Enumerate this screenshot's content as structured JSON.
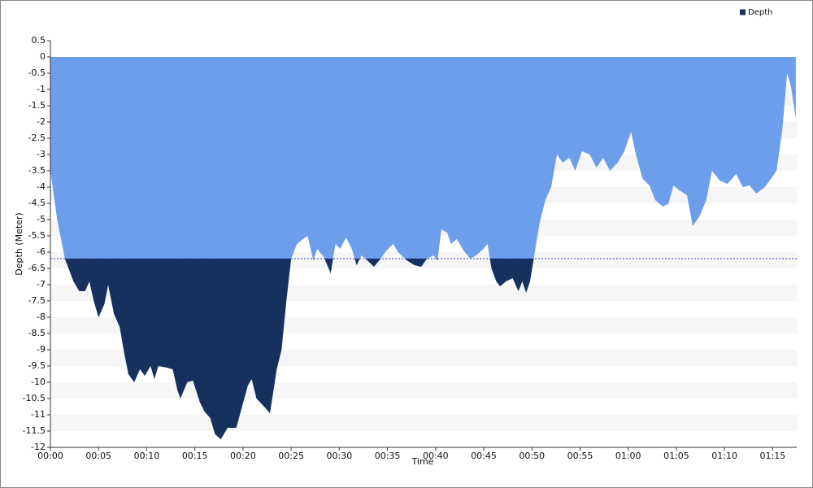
{
  "chart_data": {
    "type": "area",
    "x_label": "Time",
    "y_label": "Depth (Meter)",
    "x": [
      0,
      0.7,
      1.5,
      2.4,
      3.0,
      3.6,
      4.05,
      4.5,
      5,
      5.6,
      6,
      6.6,
      7.2,
      7.6,
      8.1,
      8.7,
      9.3,
      9.8,
      10.4,
      10.8,
      11.2,
      12.1,
      12.7,
      13.2,
      13.5,
      14.2,
      14.8,
      15.5,
      16,
      16.6,
      17.1,
      17.7,
      18.4,
      19.3,
      19.9,
      20.5,
      20.9,
      21.4,
      22.2,
      22.8,
      23.5,
      24,
      24.5,
      25,
      25.6,
      26.2,
      26.7,
      27.3,
      27.7,
      28.4,
      29.1,
      29.6,
      30.1,
      30.7,
      31.3,
      31.8,
      32.3,
      32.9,
      33.6,
      34.3,
      34.9,
      35.6,
      36.1,
      37,
      37.8,
      38.5,
      39.1,
      39.8,
      40.2,
      40.6,
      41.2,
      41.6,
      42.2,
      42.9,
      43.6,
      44.2,
      44.8,
      45.4,
      45.8,
      46.3,
      46.7,
      47.3,
      48,
      48.6,
      49,
      49.4,
      49.8,
      50.3,
      50.8,
      51.4,
      52,
      52.6,
      53.2,
      53.9,
      54.5,
      55.2,
      56,
      56.7,
      57.4,
      58.1,
      58.9,
      59.6,
      60.3,
      60.8,
      61.5,
      62.2,
      62.8,
      63.6,
      64.2,
      64.7,
      65.3,
      66.1,
      66.7,
      67.4,
      68.1,
      68.7,
      69.5,
      70.3,
      71.2,
      71.9,
      72.6,
      73.3,
      74.2,
      74.8,
      75.4,
      76,
      76.5,
      76.9,
      77.4
    ],
    "series": [
      {
        "name": "Depth",
        "color": "#17315f",
        "fill_color": "#6d9eeb",
        "values": [
          -3.5,
          -5.0,
          -6.2,
          -6.9,
          -7.2,
          -7.2,
          -6.9,
          -7.5,
          -8.0,
          -7.6,
          -7.0,
          -7.9,
          -8.3,
          -9.0,
          -9.75,
          -10.0,
          -9.6,
          -9.8,
          -9.5,
          -9.9,
          -9.5,
          -9.55,
          -9.6,
          -10.25,
          -10.5,
          -10.0,
          -9.95,
          -10.6,
          -10.9,
          -11.1,
          -11.6,
          -11.75,
          -11.4,
          -11.4,
          -10.75,
          -10.1,
          -9.9,
          -10.5,
          -10.75,
          -10.95,
          -9.6,
          -9.0,
          -7.5,
          -6.2,
          -5.75,
          -5.6,
          -5.5,
          -6.25,
          -5.9,
          -6.15,
          -6.65,
          -5.75,
          -5.9,
          -5.55,
          -5.9,
          -6.4,
          -6.1,
          -6.25,
          -6.45,
          -6.2,
          -5.95,
          -5.75,
          -6.0,
          -6.25,
          -6.4,
          -6.45,
          -6.2,
          -6.1,
          -6.25,
          -5.3,
          -5.4,
          -5.75,
          -5.6,
          -5.95,
          -6.2,
          -6.1,
          -5.95,
          -5.75,
          -6.5,
          -6.9,
          -7.05,
          -6.9,
          -6.8,
          -7.2,
          -6.9,
          -7.25,
          -6.9,
          -6.0,
          -5.1,
          -4.4,
          -4.0,
          -3.0,
          -3.25,
          -3.1,
          -3.5,
          -2.9,
          -3.0,
          -3.4,
          -3.1,
          -3.5,
          -3.25,
          -2.9,
          -2.3,
          -3.0,
          -3.75,
          -3.95,
          -4.4,
          -4.6,
          -4.5,
          -3.95,
          -4.1,
          -4.25,
          -5.2,
          -4.9,
          -4.4,
          -3.5,
          -3.8,
          -3.9,
          -3.6,
          -4.0,
          -3.95,
          -4.2,
          -4.0,
          -3.75,
          -3.5,
          -2.25,
          -0.5,
          -0.9,
          -1.9
        ]
      }
    ],
    "reference_line": -6.2,
    "xlim": [
      0,
      77.5
    ],
    "xticks": [
      {
        "value": 0,
        "label": "00:00"
      },
      {
        "value": 5,
        "label": "00:05"
      },
      {
        "value": 10,
        "label": "00:10"
      },
      {
        "value": 15,
        "label": "00:15"
      },
      {
        "value": 20,
        "label": "00:20"
      },
      {
        "value": 25,
        "label": "00:25"
      },
      {
        "value": 30,
        "label": "00:30"
      },
      {
        "value": 35,
        "label": "00:35"
      },
      {
        "value": 40,
        "label": "00:40"
      },
      {
        "value": 45,
        "label": "00:45"
      },
      {
        "value": 50,
        "label": "00:50"
      },
      {
        "value": 55,
        "label": "00:55"
      },
      {
        "value": 60,
        "label": "01:00"
      },
      {
        "value": 65,
        "label": "01:05"
      },
      {
        "value": 70,
        "label": "01:10"
      },
      {
        "value": 75,
        "label": "01:15"
      }
    ],
    "ylim": [
      -12,
      0.5
    ],
    "yticks": [
      0.5,
      0,
      -0.5,
      -1,
      -1.5,
      -2,
      -2.5,
      -3,
      -3.5,
      -4,
      -4.5,
      -5,
      -5.5,
      -6,
      -6.5,
      -7,
      -7.5,
      -8,
      -8.5,
      -9,
      -9.5,
      -10,
      -10.5,
      -11,
      -11.5,
      -12
    ],
    "grid": true,
    "legend": "top-right"
  }
}
